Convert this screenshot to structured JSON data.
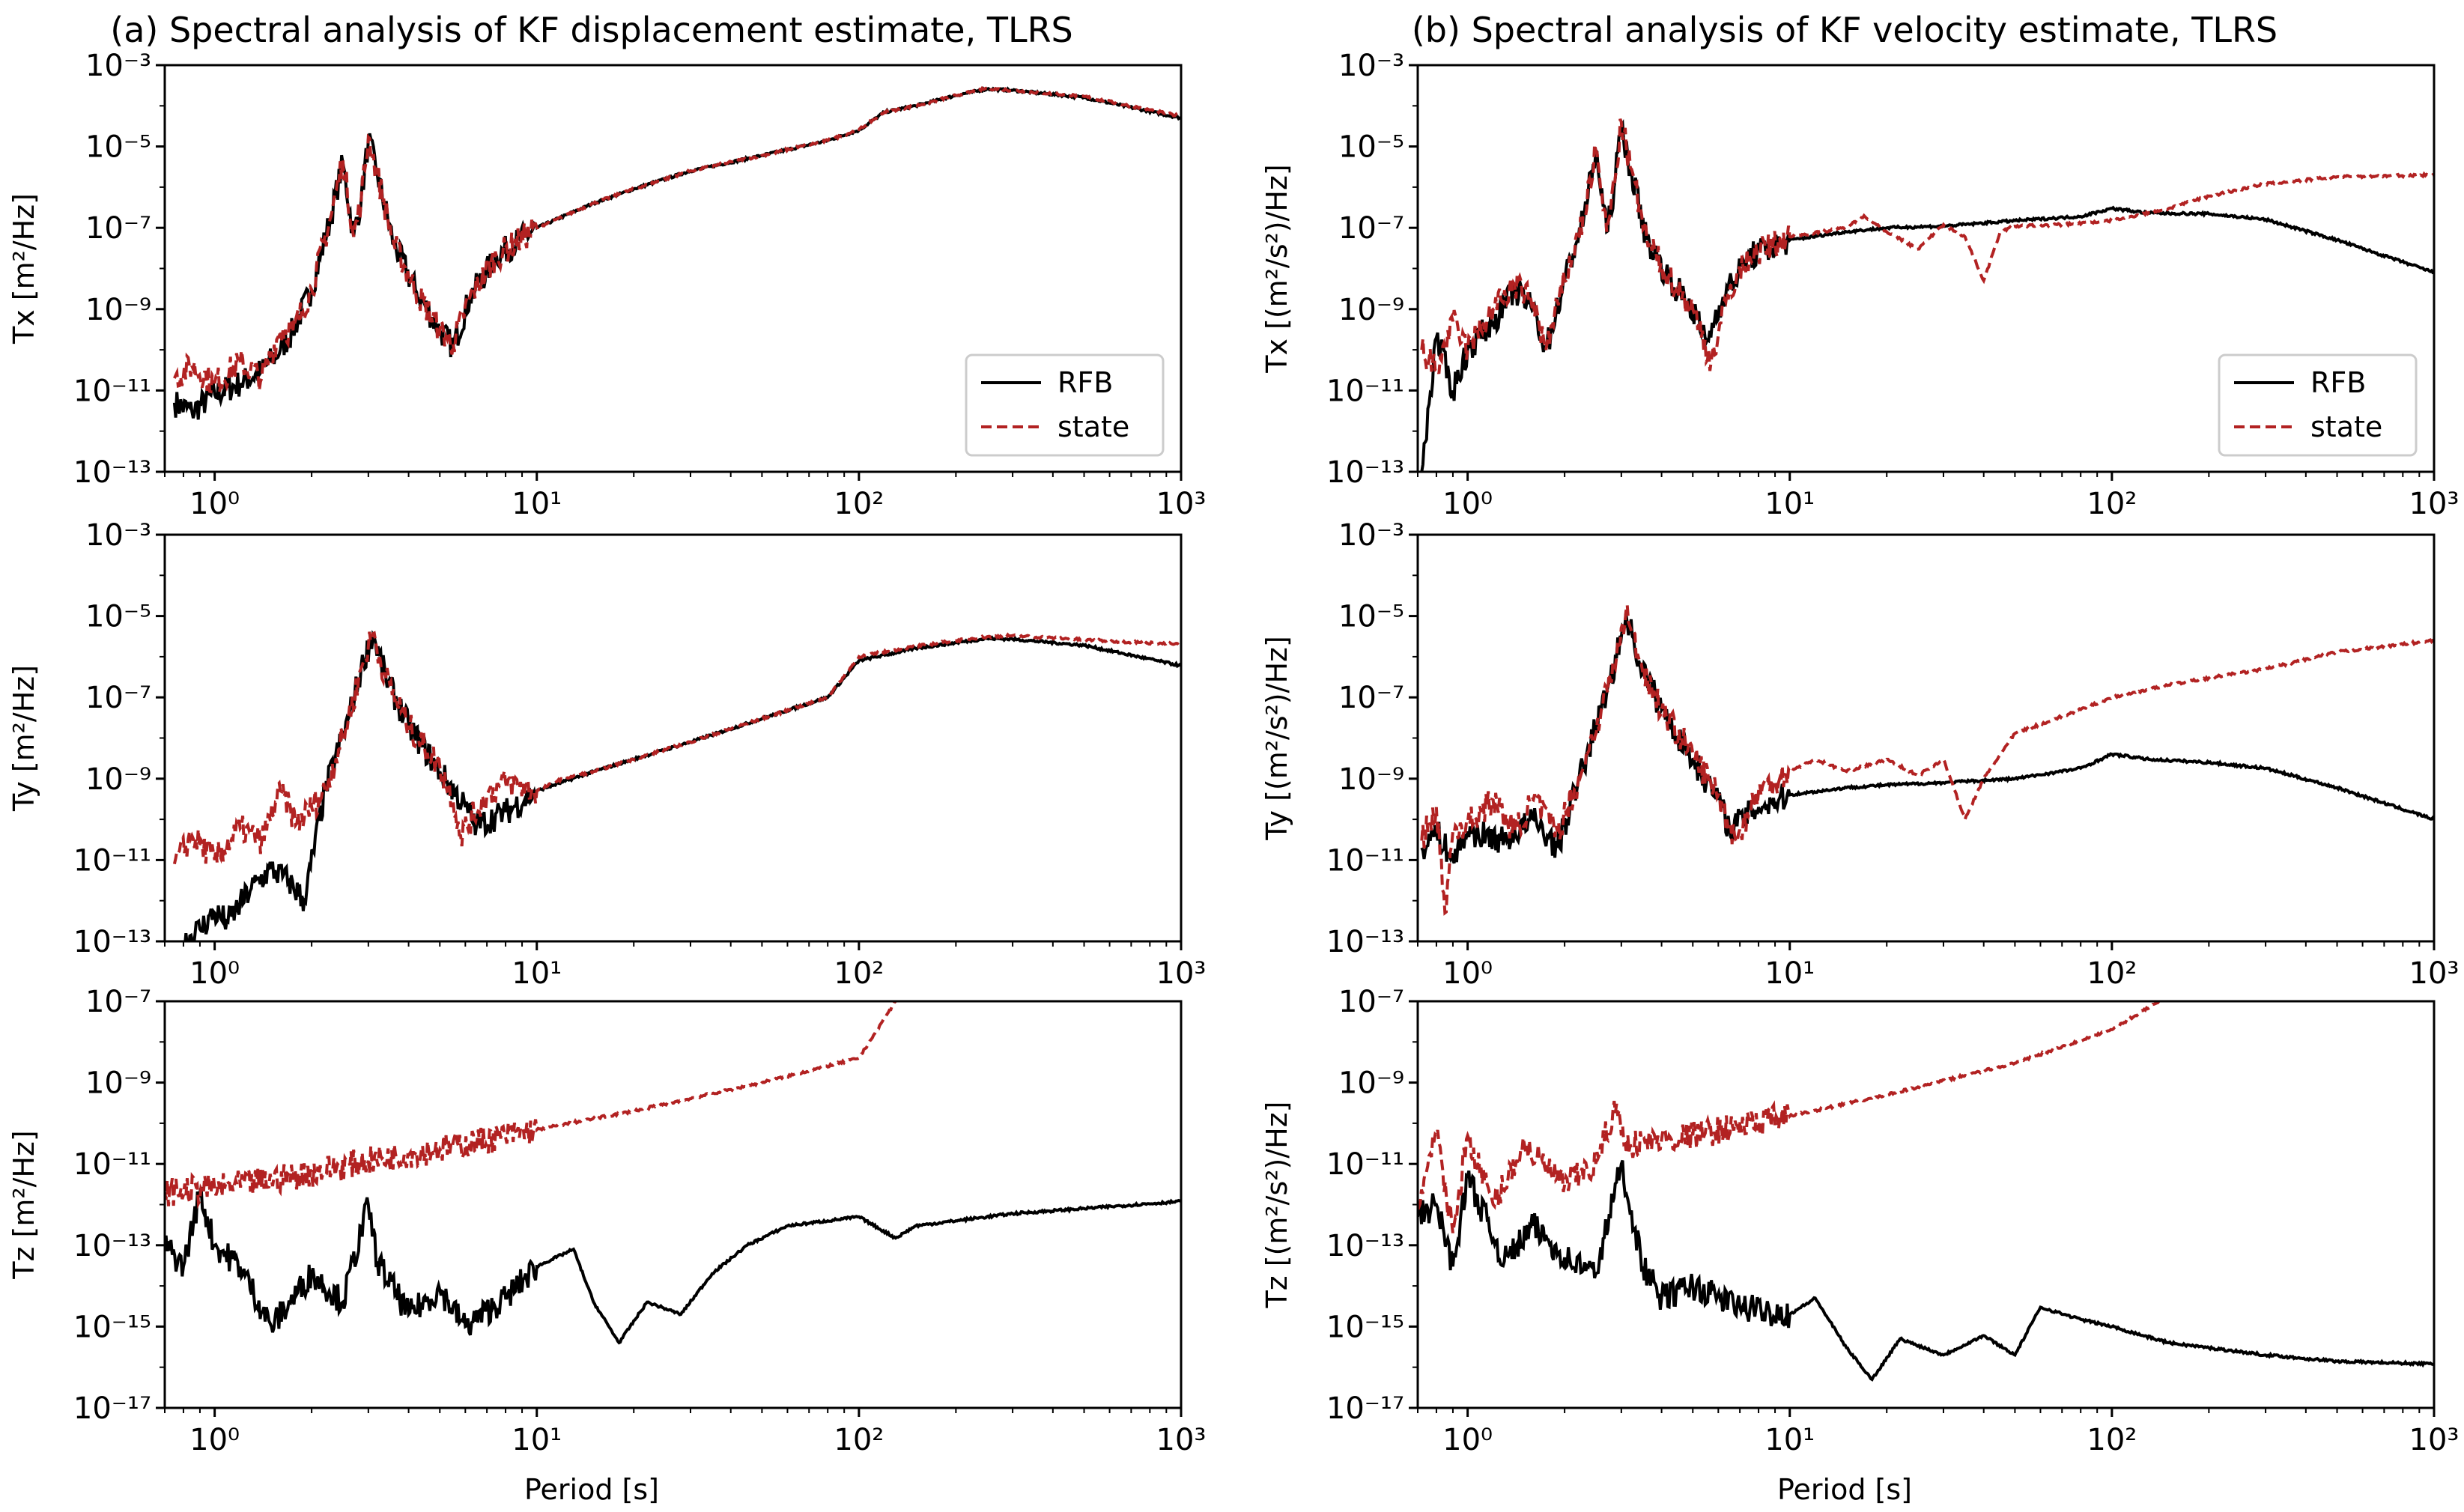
{
  "colors": {
    "rfb": "#000000",
    "state": "#b22222",
    "axis": "#000000",
    "background": "#ffffff"
  },
  "chart_data": [
    {
      "id": "a-tx",
      "column": 0,
      "row": 0,
      "type": "line",
      "title": "(a) Spectral analysis of KF displacement estimate, TLRS",
      "ylabel_main": "Tx",
      "ylabel_unit": "[m²/Hz]",
      "xlabel": "",
      "xscale": "log",
      "yscale": "log",
      "xlim": [
        0.7,
        1000
      ],
      "ylim": [
        1e-13,
        0.001
      ],
      "xticks": [
        1,
        10,
        100,
        1000
      ],
      "xtick_labels": [
        "10⁰",
        "10¹",
        "10²",
        "10³"
      ],
      "yticks": [
        1e-13,
        1e-11,
        1e-09,
        1e-07,
        1e-05,
        0.001
      ],
      "ytick_labels": [
        "10⁻¹³",
        "10⁻¹¹",
        "10⁻⁹",
        "10⁻⁷",
        "10⁻⁵",
        "10⁻³"
      ],
      "legend": {
        "location": "lower-right",
        "entries": [
          "RFB",
          "state"
        ]
      },
      "series": [
        {
          "name": "RFB",
          "style": "solid",
          "x": [
            0.75,
            0.85,
            1.0,
            1.2,
            1.4,
            1.6,
            1.75,
            2.0,
            2.3,
            2.5,
            2.7,
            2.85,
            3.0,
            3.2,
            3.6,
            4.2,
            5.0,
            5.5,
            6.2,
            7.5,
            10,
            15,
            20,
            30,
            50,
            80,
            100,
            120,
            150,
            200,
            250,
            300,
            500,
            1000
          ],
          "y": [
            5e-12,
            3e-12,
            8e-12,
            1.5e-11,
            3e-11,
            1e-10,
            3e-10,
            3e-09,
            2e-07,
            4e-06,
            6e-08,
            5e-07,
            1.5e-05,
            2e-06,
            4e-08,
            3e-09,
            3e-10,
            1.2e-10,
            2e-09,
            2e-08,
            1e-07,
            4e-07,
            9e-07,
            2.5e-06,
            6e-06,
            1.4e-05,
            2.5e-05,
            7e-05,
            0.0001,
            0.00018,
            0.00026,
            0.00024,
            0.00016,
            5e-05
          ]
        },
        {
          "name": "state",
          "style": "dashed",
          "x": [
            0.75,
            0.85,
            1.0,
            1.2,
            1.4,
            1.6,
            1.75,
            2.0,
            2.3,
            2.5,
            2.7,
            2.85,
            3.0,
            3.2,
            3.6,
            4.2,
            5.0,
            5.5,
            6.2,
            7.5,
            10,
            15,
            20,
            30,
            50,
            80,
            100,
            120,
            150,
            200,
            250,
            300,
            500,
            1000
          ],
          "y": [
            2e-11,
            4e-11,
            1.5e-11,
            5e-11,
            2e-11,
            3e-10,
            3e-10,
            3e-09,
            2e-07,
            5e-06,
            6e-08,
            5e-07,
            1.7e-05,
            2e-06,
            4e-08,
            3e-09,
            3e-10,
            1.4e-10,
            2e-09,
            2e-08,
            1e-07,
            4e-07,
            9e-07,
            2.5e-06,
            6e-06,
            1.4e-05,
            2.6e-05,
            7e-05,
            0.0001,
            0.00018,
            0.00027,
            0.00024,
            0.00017,
            5.5e-05
          ]
        }
      ]
    },
    {
      "id": "a-ty",
      "column": 0,
      "row": 1,
      "type": "line",
      "title": "",
      "ylabel_main": "Ty",
      "ylabel_unit": "[m²/Hz]",
      "xlabel": "",
      "xscale": "log",
      "yscale": "log",
      "xlim": [
        0.7,
        1000
      ],
      "ylim": [
        1e-13,
        0.001
      ],
      "xticks": [
        1,
        10,
        100,
        1000
      ],
      "xtick_labels": [
        "10⁰",
        "10¹",
        "10²",
        "10³"
      ],
      "yticks": [
        1e-13,
        1e-11,
        1e-09,
        1e-07,
        1e-05,
        0.001
      ],
      "ytick_labels": [
        "10⁻¹³",
        "10⁻¹¹",
        "10⁻⁹",
        "10⁻⁷",
        "10⁻⁵",
        "10⁻³"
      ],
      "series": [
        {
          "name": "RFB",
          "style": "solid",
          "x": [
            0.8,
            0.9,
            1.0,
            1.1,
            1.3,
            1.5,
            1.7,
            1.9,
            2.2,
            2.6,
            2.9,
            3.1,
            3.4,
            4.0,
            5.0,
            6.0,
            6.5,
            8,
            10,
            15,
            20,
            30,
            50,
            80,
            100,
            150,
            200,
            250,
            300,
            500,
            1000
          ],
          "y": [
            1e-13,
            2e-13,
            5e-13,
            3e-13,
            2e-12,
            6e-12,
            3e-12,
            1e-12,
            5e-10,
            3e-08,
            8e-07,
            3.5e-06,
            3e-07,
            2e-08,
            1.5e-09,
            2e-10,
            7e-11,
            1.5e-10,
            5e-10,
            1.5e-09,
            3e-09,
            8e-09,
            3e-08,
            1e-07,
            8e-07,
            1.6e-06,
            2.2e-06,
            2.8e-06,
            2.7e-06,
            1.9e-06,
            6e-07
          ]
        },
        {
          "name": "state",
          "style": "dashed",
          "x": [
            0.75,
            0.85,
            1.0,
            1.2,
            1.4,
            1.6,
            1.8,
            2.0,
            2.2,
            2.6,
            2.9,
            3.1,
            3.4,
            4.0,
            5.0,
            5.5,
            5.8,
            7,
            8,
            10,
            12,
            15,
            20,
            30,
            50,
            80,
            100,
            150,
            200,
            250,
            300,
            500,
            1000
          ],
          "y": [
            8e-12,
            4e-11,
            1e-11,
            6e-11,
            3e-11,
            5e-10,
            8e-11,
            2e-10,
            5e-10,
            3e-08,
            8e-07,
            3.7e-06,
            3e-07,
            2e-08,
            2e-09,
            3e-10,
            4e-11,
            4e-10,
            8e-10,
            5e-10,
            1e-09,
            1.5e-09,
            3e-09,
            8e-09,
            3e-08,
            1e-07,
            1e-06,
            1.8e-06,
            2.5e-06,
            3.1e-06,
            3.3e-06,
            2.6e-06,
            2e-06
          ]
        }
      ]
    },
    {
      "id": "a-tz",
      "column": 0,
      "row": 2,
      "type": "line",
      "title": "",
      "ylabel_main": "Tz",
      "ylabel_unit": "[m²/Hz]",
      "xlabel": "Period [s]",
      "xscale": "log",
      "yscale": "log",
      "xlim": [
        0.7,
        1000
      ],
      "ylim": [
        1e-17,
        1e-07
      ],
      "xticks": [
        1,
        10,
        100,
        1000
      ],
      "xtick_labels": [
        "10⁰",
        "10¹",
        "10²",
        "10³"
      ],
      "yticks": [
        1e-17,
        1e-15,
        1e-13,
        1e-11,
        1e-09,
        1e-07
      ],
      "ytick_labels": [
        "10⁻¹⁷",
        "10⁻¹⁵",
        "10⁻¹³",
        "10⁻¹¹",
        "10⁻⁹",
        "10⁻⁷"
      ],
      "series": [
        {
          "name": "RFB",
          "style": "solid",
          "x": [
            0.7,
            0.8,
            0.9,
            1.0,
            1.2,
            1.5,
            2.0,
            2.5,
            3.0,
            3.2,
            4.0,
            5.0,
            6.0,
            8.0,
            10,
            13,
            15,
            18,
            22,
            28,
            35,
            45,
            60,
            80,
            100,
            130,
            150,
            200,
            300,
            500,
            1000
          ],
          "y": [
            1e-13,
            3e-14,
            2e-12,
            1e-13,
            3e-14,
            1e-15,
            2e-14,
            4e-15,
            1e-12,
            4e-14,
            2e-15,
            8e-15,
            1e-15,
            5e-15,
            3e-14,
            8e-14,
            4e-15,
            4e-16,
            4e-15,
            2e-15,
            2e-14,
            1e-13,
            3e-13,
            4e-13,
            5e-13,
            1.5e-13,
            3e-13,
            4e-13,
            6e-13,
            8e-13,
            1.2e-12
          ]
        },
        {
          "name": "state",
          "style": "dashed",
          "x": [
            0.7,
            1.0,
            1.5,
            2.0,
            3.0,
            5.0,
            10,
            20,
            50,
            100,
            130
          ],
          "y": [
            2e-12,
            2.5e-12,
            4e-12,
            6e-12,
            1.2e-11,
            2.3e-11,
            7e-11,
            2e-10,
            1e-09,
            4e-09,
            1e-07
          ]
        }
      ]
    },
    {
      "id": "b-tx",
      "column": 1,
      "row": 0,
      "type": "line",
      "title": "(b) Spectral analysis of KF velocity estimate, TLRS",
      "ylabel_main": "Tx",
      "ylabel_unit": "[(m²/s²)/Hz]",
      "xlabel": "",
      "xscale": "log",
      "yscale": "log",
      "xlim": [
        0.7,
        1000
      ],
      "ylim": [
        1e-13,
        0.001
      ],
      "xticks": [
        1,
        10,
        100,
        1000
      ],
      "xtick_labels": [
        "10⁰",
        "10¹",
        "10²",
        "10³"
      ],
      "yticks": [
        1e-13,
        1e-11,
        1e-09,
        1e-07,
        1e-05,
        0.001
      ],
      "ytick_labels": [
        "10⁻¹³",
        "10⁻¹¹",
        "10⁻⁹",
        "10⁻⁷",
        "10⁻⁵",
        "10⁻³"
      ],
      "legend": {
        "location": "lower-right",
        "entries": [
          "RFB",
          "state"
        ]
      },
      "series": [
        {
          "name": "RFB",
          "style": "solid",
          "x": [
            0.72,
            0.8,
            0.9,
            1.0,
            1.2,
            1.4,
            1.6,
            1.75,
            2.0,
            2.3,
            2.5,
            2.7,
            2.85,
            3.0,
            3.2,
            3.6,
            4.2,
            5.0,
            5.5,
            6.2,
            7.5,
            10,
            15,
            20,
            30,
            50,
            80,
            100,
            130,
            200,
            300,
            500,
            1000
          ],
          "y": [
            1e-13,
            2e-10,
            1e-11,
            1e-10,
            5e-10,
            3e-09,
            1e-09,
            1e-10,
            5e-09,
            2e-07,
            8e-06,
            8e-08,
            1e-06,
            3e-05,
            3e-06,
            5e-08,
            6e-09,
            1e-09,
            1.5e-10,
            2e-09,
            2e-08,
            5e-08,
            8e-08,
            1e-07,
            1.1e-07,
            1.5e-07,
            1.9e-07,
            3e-07,
            2.3e-07,
            2.2e-07,
            1.6e-07,
            5e-08,
            8e-09
          ]
        },
        {
          "name": "state",
          "style": "dashed",
          "x": [
            0.72,
            0.8,
            0.9,
            1.0,
            1.2,
            1.4,
            1.6,
            1.75,
            2.0,
            2.3,
            2.5,
            2.7,
            2.85,
            3.0,
            3.2,
            3.6,
            4.2,
            5.0,
            5.7,
            6.5,
            7.5,
            10,
            15,
            17,
            20,
            25,
            30,
            35,
            40,
            45,
            50,
            70,
            100,
            150,
            200,
            300,
            500,
            1000
          ],
          "y": [
            1e-10,
            3e-11,
            5e-10,
            1e-10,
            1e-09,
            4e-09,
            1.5e-09,
            1e-10,
            5e-09,
            2e-07,
            8e-06,
            8e-08,
            1e-06,
            4e-05,
            3e-06,
            5e-08,
            6e-09,
            1e-09,
            5e-11,
            3e-09,
            2e-08,
            6e-08,
            1e-07,
            2e-07,
            8e-08,
            3e-08,
            1.2e-07,
            6e-08,
            5e-09,
            8e-08,
            1.1e-07,
            1.2e-07,
            1.5e-07,
            3e-07,
            6e-07,
            1.2e-06,
            1.8e-06,
            2e-06
          ]
        }
      ]
    },
    {
      "id": "b-ty",
      "column": 1,
      "row": 1,
      "type": "line",
      "title": "",
      "ylabel_main": "Ty",
      "ylabel_unit": "[(m²/s²)/Hz]",
      "xlabel": "",
      "xscale": "log",
      "yscale": "log",
      "xlim": [
        0.7,
        1000
      ],
      "ylim": [
        1e-13,
        0.001
      ],
      "xticks": [
        1,
        10,
        100,
        1000
      ],
      "xtick_labels": [
        "10⁰",
        "10¹",
        "10²",
        "10³"
      ],
      "yticks": [
        1e-13,
        1e-11,
        1e-09,
        1e-07,
        1e-05,
        0.001
      ],
      "ytick_labels": [
        "10⁻¹³",
        "10⁻¹¹",
        "10⁻⁹",
        "10⁻⁷",
        "10⁻⁵",
        "10⁻³"
      ],
      "series": [
        {
          "name": "RFB",
          "style": "solid",
          "x": [
            0.72,
            0.8,
            0.9,
            1.0,
            1.3,
            1.6,
            1.9,
            2.2,
            2.6,
            2.9,
            3.1,
            3.4,
            4.0,
            5.0,
            6.0,
            6.5,
            8,
            10,
            15,
            20,
            30,
            50,
            80,
            100,
            130,
            200,
            300,
            500,
            1000
          ],
          "y": [
            2e-11,
            5e-11,
            1e-11,
            5e-11,
            3e-11,
            1e-10,
            2e-11,
            8e-10,
            5e-08,
            1e-06,
            1.2e-05,
            8e-07,
            5e-08,
            3e-09,
            3e-10,
            6e-11,
            2e-10,
            4e-10,
            6e-10,
            7e-10,
            8e-10,
            1e-09,
            1.8e-09,
            4e-09,
            3e-09,
            2.5e-09,
            1.8e-09,
            6e-10,
            1e-10
          ]
        },
        {
          "name": "state",
          "style": "dashed",
          "x": [
            0.72,
            0.8,
            0.85,
            0.9,
            1.0,
            1.2,
            1.4,
            1.6,
            1.9,
            2.2,
            2.6,
            2.9,
            3.1,
            3.4,
            4.0,
            5.0,
            6.0,
            6.8,
            8,
            10,
            12,
            15,
            20,
            25,
            30,
            35,
            40,
            50,
            80,
            100,
            150,
            200,
            300,
            500,
            1000
          ],
          "y": [
            3e-11,
            2e-10,
            5e-13,
            5e-11,
            8e-11,
            3e-10,
            5e-11,
            3e-10,
            5e-11,
            8e-10,
            5e-08,
            1e-06,
            1.3e-05,
            9e-07,
            5e-08,
            4e-09,
            4e-10,
            3e-11,
            5e-10,
            1.5e-09,
            3e-09,
            1.5e-09,
            3e-09,
            1.2e-09,
            3e-09,
            1e-10,
            1e-09,
            1.3e-08,
            5e-08,
            1e-07,
            2e-07,
            3e-07,
            5e-07,
            1.3e-06,
            2.5e-06
          ]
        }
      ]
    },
    {
      "id": "b-tz",
      "column": 1,
      "row": 2,
      "type": "line",
      "title": "",
      "ylabel_main": "Tz",
      "ylabel_unit": "[(m²/s²)/Hz]",
      "xlabel": "Period [s]",
      "xscale": "log",
      "yscale": "log",
      "xlim": [
        0.7,
        1000
      ],
      "ylim": [
        1e-17,
        1e-07
      ],
      "xticks": [
        1,
        10,
        100,
        1000
      ],
      "xtick_labels": [
        "10⁰",
        "10¹",
        "10²",
        "10³"
      ],
      "yticks": [
        1e-17,
        1e-15,
        1e-13,
        1e-11,
        1e-09,
        1e-07
      ],
      "ytick_labels": [
        "10⁻¹⁷",
        "10⁻¹⁵",
        "10⁻¹³",
        "10⁻¹¹",
        "10⁻⁹",
        "10⁻⁷"
      ],
      "series": [
        {
          "name": "RFB",
          "style": "solid",
          "x": [
            0.7,
            0.8,
            0.9,
            1.0,
            1.3,
            1.6,
            2.0,
            2.5,
            3.0,
            3.5,
            4.0,
            5.0,
            7.0,
            10,
            12,
            15,
            18,
            22,
            30,
            40,
            50,
            60,
            80,
            100,
            150,
            200,
            300,
            500,
            1000
          ],
          "y": [
            5e-13,
            1e-12,
            3e-14,
            5e-12,
            4e-14,
            3e-13,
            5e-14,
            2e-14,
            1e-11,
            3e-14,
            5e-15,
            1e-14,
            3e-15,
            2e-15,
            5e-15,
            3e-16,
            5e-17,
            5e-16,
            2e-16,
            6e-16,
            2e-16,
            3e-15,
            1.5e-15,
            1e-15,
            4e-16,
            3e-16,
            2e-16,
            1.4e-16,
            1.2e-16
          ]
        },
        {
          "name": "state",
          "style": "dashed",
          "x": [
            0.7,
            0.8,
            0.9,
            1.0,
            1.2,
            1.5,
            2.0,
            2.5,
            2.9,
            3.0,
            3.2,
            4.0,
            5.0,
            10,
            20,
            50,
            100,
            140
          ],
          "y": [
            1e-12,
            5e-11,
            2e-13,
            5e-11,
            1e-12,
            3e-11,
            3e-12,
            1e-11,
            3e-10,
            5e-11,
            3e-11,
            4e-11,
            5e-11,
            1.5e-10,
            5e-10,
            3e-09,
            2e-08,
            1e-07
          ]
        }
      ]
    }
  ]
}
